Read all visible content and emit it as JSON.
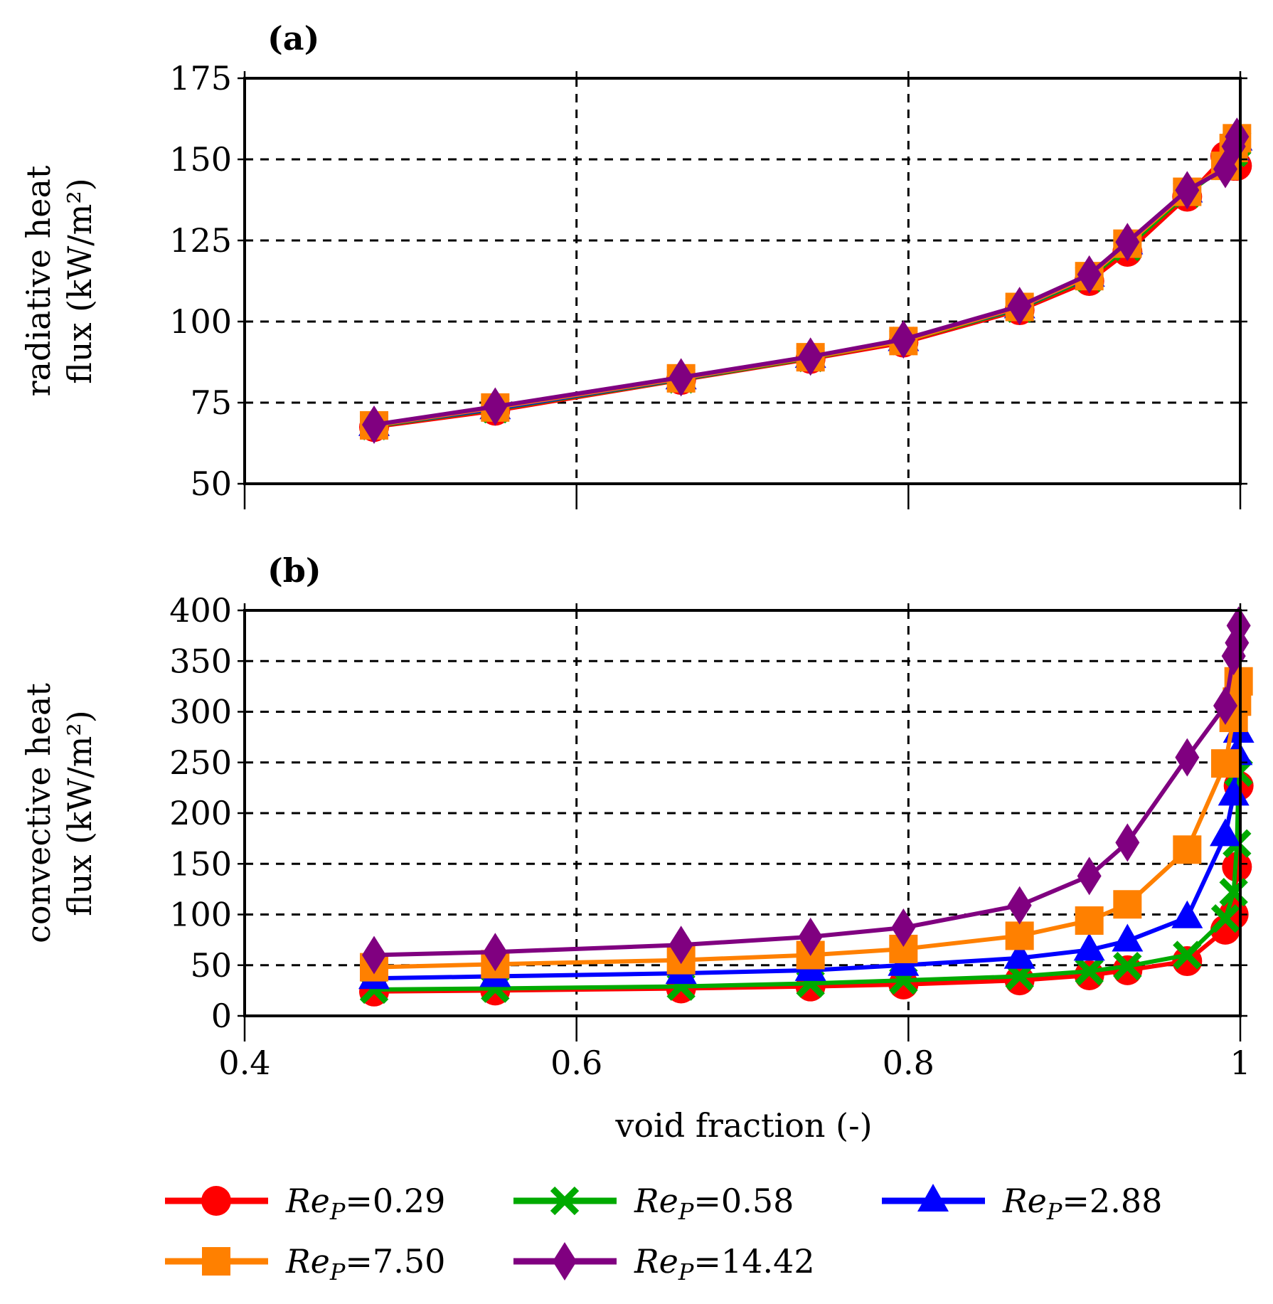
{
  "legend": [
    {
      "series": 0,
      "name": "Re_P=0.29"
    },
    {
      "series": 1,
      "name": "Re_P=0.58"
    },
    {
      "series": 2,
      "name": "Re_P=2.88"
    },
    {
      "series": 3,
      "name": "Re_P=7.50"
    },
    {
      "series": 4,
      "name": "Re_P=14.42"
    }
  ],
  "series_style": [
    {
      "color": "#ff0000",
      "marker": "circle"
    },
    {
      "color": "#00aa00",
      "marker": "cross"
    },
    {
      "color": "#0000ff",
      "marker": "triangle"
    },
    {
      "color": "#ff8000",
      "marker": "square"
    },
    {
      "color": "#800080",
      "marker": "diamond"
    }
  ],
  "chart_data": [
    {
      "type": "line",
      "panel_label": "(a)",
      "title": "",
      "xlabel": "",
      "ylabel_lines": [
        "radiative heat",
        "flux (kW/m²)"
      ],
      "xlim": [
        0.4,
        1.0
      ],
      "ylim": [
        50,
        175
      ],
      "xticks": [
        0.4,
        0.6,
        0.8,
        1.0
      ],
      "yticks": [
        50,
        75,
        100,
        125,
        150,
        175
      ],
      "show_xtick_labels": false,
      "grid": true,
      "x": [
        0.478,
        0.551,
        0.663,
        0.741,
        0.797,
        0.867,
        0.909,
        0.932,
        0.968,
        0.991,
        0.996,
        0.998
      ],
      "series": [
        {
          "name": "Re_P=0.29",
          "values": [
            67.5,
            72.5,
            82.0,
            88.5,
            93.5,
            103.5,
            112.5,
            121.5,
            138.5,
            151.0,
            148.0,
            148.0
          ]
        },
        {
          "name": "Re_P=0.58",
          "values": [
            67.8,
            73.0,
            82.2,
            88.8,
            94.0,
            104.0,
            113.5,
            123.0,
            139.5,
            148.0,
            152.0,
            155.0
          ]
        },
        {
          "name": "Re_P=2.88",
          "values": [
            68.0,
            73.2,
            82.4,
            89.0,
            94.2,
            104.3,
            114.0,
            124.0,
            140.0,
            148.0,
            153.0,
            156.0
          ]
        },
        {
          "name": "Re_P=7.50",
          "values": [
            68.0,
            73.5,
            82.5,
            89.0,
            94.0,
            104.5,
            114.0,
            124.0,
            140.0,
            148.0,
            153.5,
            156.5
          ]
        },
        {
          "name": "Re_P=14.42",
          "values": [
            68.2,
            73.8,
            82.8,
            89.2,
            94.5,
            104.8,
            114.5,
            124.5,
            140.5,
            147.0,
            154.0,
            157.0
          ]
        }
      ]
    },
    {
      "type": "line",
      "panel_label": "(b)",
      "title": "",
      "xlabel": "void fraction (-)",
      "ylabel_lines": [
        "convective heat",
        "flux (kW/m²)"
      ],
      "xlim": [
        0.4,
        1.0
      ],
      "ylim": [
        0,
        400
      ],
      "xticks": [
        0.4,
        0.6,
        0.8,
        1.0
      ],
      "xtick_labels": [
        "0.4",
        "0.6",
        "0.8",
        "1"
      ],
      "yticks": [
        0,
        50,
        100,
        150,
        200,
        250,
        300,
        350,
        400
      ],
      "grid": true,
      "x": [
        0.478,
        0.551,
        0.663,
        0.741,
        0.797,
        0.867,
        0.909,
        0.932,
        0.968,
        0.991,
        0.996,
        0.998,
        0.999
      ],
      "series": [
        {
          "name": "Re_P=0.29",
          "values": [
            24,
            25,
            27,
            29,
            31,
            35,
            40,
            45,
            54,
            85,
            100,
            147,
            227
          ]
        },
        {
          "name": "Re_P=0.58",
          "values": [
            26,
            27,
            29,
            32,
            35,
            39,
            44,
            49,
            60,
            96,
            122,
            170,
            240
          ]
        },
        {
          "name": "Re_P=2.88",
          "values": [
            37,
            39,
            42,
            45,
            50,
            57,
            65,
            74,
            97,
            178,
            218,
            258,
            280
          ]
        },
        {
          "name": "Re_P=7.50",
          "values": [
            48,
            51,
            55,
            60,
            66,
            79,
            94,
            110,
            164,
            249,
            294,
            310,
            330
          ]
        },
        {
          "name": "Re_P=14.42",
          "values": [
            60,
            63,
            70,
            78,
            87,
            109,
            138,
            171,
            255,
            306,
            355,
            368,
            385
          ]
        }
      ]
    }
  ]
}
